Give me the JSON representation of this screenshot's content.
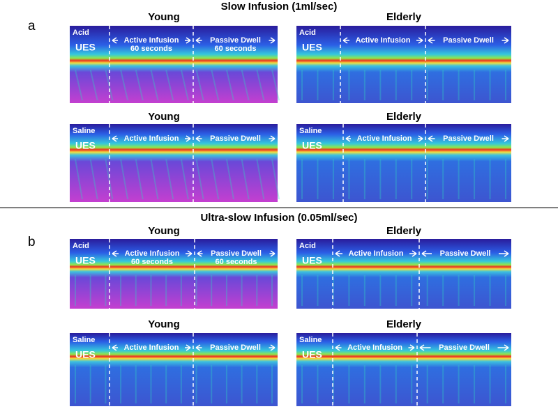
{
  "sections": [
    {
      "label": "a",
      "title": "Slow Infusion (1ml/sec)",
      "panels": [
        {
          "heading": "Young",
          "fluid": "Acid",
          "sphincter": "UES",
          "phases": [
            {
              "label": "Active Infusion",
              "duration": "60 seconds"
            },
            {
              "label": "Passive Dwell",
              "duration": "60 seconds"
            }
          ]
        },
        {
          "heading": "Elderly",
          "fluid": "Acid",
          "sphincter": "UES",
          "phases": [
            {
              "label": "Active Infusion"
            },
            {
              "label": "Passive Dwell"
            }
          ]
        },
        {
          "heading": "Young",
          "fluid": "Saline",
          "sphincter": "UES",
          "phases": [
            {
              "label": "Active Infusion"
            },
            {
              "label": "Passive Dwell"
            }
          ]
        },
        {
          "heading": "Elderly",
          "fluid": "Saline",
          "sphincter": "UES",
          "phases": [
            {
              "label": "Active Infusion"
            },
            {
              "label": "Passive Dwell"
            }
          ]
        }
      ]
    },
    {
      "label": "b",
      "title": "Ultra-slow  Infusion (0.05ml/sec)",
      "panels": [
        {
          "heading": "Young",
          "fluid": "Acid",
          "sphincter": "UES",
          "phases": [
            {
              "label": "Active Infusion",
              "duration": "60 seconds"
            },
            {
              "label": "Passive Dwell",
              "duration": "60 seconds"
            }
          ]
        },
        {
          "heading": "Elderly",
          "fluid": "Acid",
          "sphincter": "UES",
          "phases": [
            {
              "label": "Active Infusion"
            },
            {
              "label": "Passive Dwell"
            }
          ]
        },
        {
          "heading": "Young",
          "fluid": "Saline",
          "sphincter": "UES",
          "phases": [
            {
              "label": "Active Infusion"
            },
            {
              "label": "Passive Dwell"
            }
          ]
        },
        {
          "heading": "Elderly",
          "fluid": "Saline",
          "sphincter": "UES",
          "phases": [
            {
              "label": "Active Infusion"
            },
            {
              "label": "Passive Dwell"
            }
          ]
        }
      ]
    }
  ]
}
